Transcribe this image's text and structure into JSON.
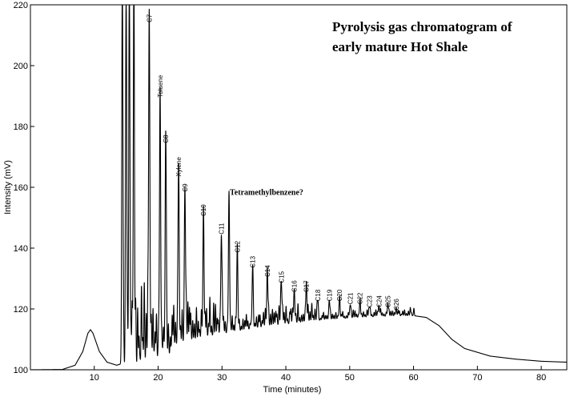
{
  "chart_data": {
    "type": "line",
    "title_lines": [
      "Pyrolysis gas chromatogram of",
      "early mature Hot Shale"
    ],
    "xlabel": "Time (minutes)",
    "ylabel": "Intensity (mV)",
    "xlim": [
      0,
      84
    ],
    "ylim": [
      100,
      220
    ],
    "x_ticks": [
      10,
      20,
      30,
      40,
      50,
      60,
      70,
      80
    ],
    "y_ticks": [
      100,
      120,
      140,
      160,
      180,
      200,
      220
    ],
    "grid": false,
    "color": "#000000",
    "baseline": [
      [
        0,
        100.0
      ],
      [
        5,
        100.1
      ],
      [
        7,
        101.5
      ],
      [
        8.2,
        106
      ],
      [
        9.0,
        112
      ],
      [
        9.4,
        113.2
      ],
      [
        9.8,
        112
      ],
      [
        10.8,
        106
      ],
      [
        12,
        102.5
      ],
      [
        13.5,
        101.5
      ],
      [
        14,
        101.8
      ],
      [
        16,
        103
      ],
      [
        18,
        104.5
      ],
      [
        20,
        106
      ],
      [
        22,
        107.5
      ],
      [
        25,
        109.5
      ],
      [
        28,
        111
      ],
      [
        32,
        112.5
      ],
      [
        36,
        114
      ],
      [
        40,
        115
      ],
      [
        45,
        116.2
      ],
      [
        50,
        117
      ],
      [
        55,
        117.6
      ],
      [
        60,
        117.8
      ],
      [
        62,
        117.2
      ],
      [
        64,
        114.5
      ],
      [
        66,
        110
      ],
      [
        68,
        107
      ],
      [
        72,
        104.5
      ],
      [
        76,
        103.5
      ],
      [
        80,
        102.8
      ],
      [
        84,
        102.5
      ]
    ],
    "peaks": [
      {
        "label": "",
        "x": 14.4,
        "y": 220
      },
      {
        "label": "",
        "x": 15.0,
        "y": 220
      },
      {
        "label": "",
        "x": 15.5,
        "y": 220
      },
      {
        "label": "",
        "x": 16.2,
        "y": 220
      },
      {
        "label": "C7",
        "x": 18.6,
        "y": 220
      },
      {
        "label": "Toluene",
        "x": 20.3,
        "y": 189
      },
      {
        "label": "C8",
        "x": 21.2,
        "y": 174
      },
      {
        "label": "Xylene",
        "x": 23.2,
        "y": 163
      },
      {
        "label": "C9",
        "x": 24.2,
        "y": 158
      },
      {
        "label": "C10",
        "x": 27.1,
        "y": 150
      },
      {
        "label": "Tetramethylbenzene?",
        "x": 31.1,
        "y": 157
      },
      {
        "label": "C11",
        "x": 29.9,
        "y": 144
      },
      {
        "label": "C12",
        "x": 32.4,
        "y": 138
      },
      {
        "label": "C13",
        "x": 34.8,
        "y": 133
      },
      {
        "label": "C14",
        "x": 37.1,
        "y": 130
      },
      {
        "label": "C15",
        "x": 39.3,
        "y": 128
      },
      {
        "label": "C16",
        "x": 41.3,
        "y": 125
      },
      {
        "label": "C17",
        "x": 43.2,
        "y": 125
      },
      {
        "label": "C18",
        "x": 45.0,
        "y": 122
      },
      {
        "label": "C19",
        "x": 46.8,
        "y": 122
      },
      {
        "label": "C20",
        "x": 48.4,
        "y": 122
      },
      {
        "label": "C21",
        "x": 50.1,
        "y": 121
      },
      {
        "label": "C22",
        "x": 51.6,
        "y": 121
      },
      {
        "label": "C23",
        "x": 53.1,
        "y": 120
      },
      {
        "label": "C24",
        "x": 54.6,
        "y": 120
      },
      {
        "label": "C25",
        "x": 56.0,
        "y": 120
      },
      {
        "label": "C26",
        "x": 57.3,
        "y": 119
      }
    ]
  }
}
